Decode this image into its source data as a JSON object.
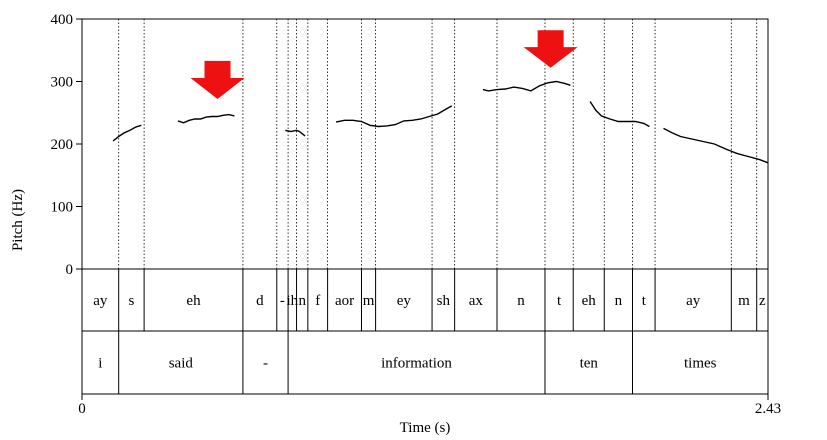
{
  "chart_data": {
    "type": "line",
    "title": "",
    "xlabel": "Time (s)",
    "ylabel": "Pitch (Hz)",
    "xlim": [
      0,
      2.43
    ],
    "ylim": [
      0,
      400
    ],
    "x_tick_labels": [
      "0",
      "2.43"
    ],
    "y_ticks": [
      0,
      100,
      200,
      300,
      400
    ],
    "grid": false,
    "colors": {
      "curve": "#000000",
      "arrow": "#ee1111"
    },
    "series": [
      {
        "x": [
          0.11,
          0.13,
          0.15,
          0.17,
          0.19,
          0.21
        ],
        "y": [
          205,
          212,
          218,
          222,
          227,
          230
        ]
      },
      {
        "x": [
          0.34,
          0.36,
          0.38,
          0.4,
          0.42,
          0.44,
          0.46,
          0.48,
          0.5,
          0.52,
          0.54
        ],
        "y": [
          237,
          234,
          238,
          240,
          240,
          243,
          244,
          244,
          246,
          247,
          245
        ]
      },
      {
        "x": [
          0.72,
          0.74,
          0.76,
          0.77,
          0.79
        ],
        "y": [
          222,
          220,
          222,
          220,
          213
        ]
      },
      {
        "x": [
          0.9,
          0.93,
          0.96,
          0.99,
          1.02,
          1.05,
          1.08,
          1.11,
          1.14,
          1.17,
          1.2,
          1.23,
          1.26,
          1.29,
          1.31
        ],
        "y": [
          235,
          238,
          238,
          236,
          230,
          228,
          229,
          231,
          237,
          238,
          240,
          244,
          248,
          256,
          261
        ]
      },
      {
        "x": [
          1.42,
          1.44,
          1.47,
          1.5,
          1.53,
          1.56,
          1.59,
          1.62,
          1.65,
          1.68,
          1.71,
          1.73
        ],
        "y": [
          287,
          285,
          287,
          288,
          291,
          289,
          285,
          293,
          298,
          300,
          297,
          294
        ]
      },
      {
        "x": [
          1.8,
          1.82,
          1.84,
          1.87,
          1.9,
          1.93,
          1.96,
          1.99,
          2.01
        ],
        "y": [
          268,
          254,
          245,
          240,
          236,
          236,
          236,
          233,
          228
        ]
      },
      {
        "x": [
          2.06,
          2.09,
          2.12,
          2.16,
          2.2,
          2.24,
          2.28,
          2.32,
          2.36,
          2.4,
          2.43
        ],
        "y": [
          225,
          218,
          212,
          208,
          204,
          200,
          192,
          185,
          180,
          175,
          170
        ]
      }
    ],
    "dotted_boundaries_x": [
      0.13,
      0.22,
      0.57,
      0.69,
      0.73,
      0.76,
      0.8,
      0.87,
      0.99,
      1.04,
      1.24,
      1.32,
      1.47,
      1.64,
      1.74,
      1.85,
      1.95,
      2.03,
      2.3,
      2.39
    ],
    "arrows": [
      {
        "x": 0.48,
        "y_top": 333,
        "y_tip": 272
      },
      {
        "x": 1.66,
        "y_top": 382,
        "y_tip": 322
      }
    ],
    "tiers": [
      {
        "name": "phones",
        "intervals": [
          {
            "text": "ay",
            "start": 0.0,
            "end": 0.13
          },
          {
            "text": "s",
            "start": 0.13,
            "end": 0.22
          },
          {
            "text": "eh",
            "start": 0.22,
            "end": 0.57
          },
          {
            "text": "d",
            "start": 0.57,
            "end": 0.69
          },
          {
            "text": "-",
            "start": 0.69,
            "end": 0.73
          },
          {
            "text": "ih",
            "start": 0.73,
            "end": 0.76
          },
          {
            "text": "n",
            "start": 0.76,
            "end": 0.8
          },
          {
            "text": "f",
            "start": 0.8,
            "end": 0.87
          },
          {
            "text": "aor",
            "start": 0.87,
            "end": 0.99
          },
          {
            "text": "m",
            "start": 0.99,
            "end": 1.04
          },
          {
            "text": "ey",
            "start": 1.04,
            "end": 1.24
          },
          {
            "text": "sh",
            "start": 1.24,
            "end": 1.32
          },
          {
            "text": "ax",
            "start": 1.32,
            "end": 1.47
          },
          {
            "text": "n",
            "start": 1.47,
            "end": 1.64
          },
          {
            "text": "t",
            "start": 1.64,
            "end": 1.74
          },
          {
            "text": "eh",
            "start": 1.74,
            "end": 1.85
          },
          {
            "text": "n",
            "start": 1.85,
            "end": 1.95
          },
          {
            "text": "t",
            "start": 1.95,
            "end": 2.03
          },
          {
            "text": "ay",
            "start": 2.03,
            "end": 2.3
          },
          {
            "text": "m",
            "start": 2.3,
            "end": 2.39
          },
          {
            "text": "z",
            "start": 2.39,
            "end": 2.43
          }
        ]
      },
      {
        "name": "words",
        "intervals": [
          {
            "text": "i",
            "start": 0.0,
            "end": 0.13
          },
          {
            "text": "said",
            "start": 0.13,
            "end": 0.57
          },
          {
            "text": "-",
            "start": 0.57,
            "end": 0.73
          },
          {
            "text": "information",
            "start": 0.73,
            "end": 1.64
          },
          {
            "text": "ten",
            "start": 1.64,
            "end": 1.95
          },
          {
            "text": "times",
            "start": 1.95,
            "end": 2.43
          }
        ]
      }
    ]
  }
}
